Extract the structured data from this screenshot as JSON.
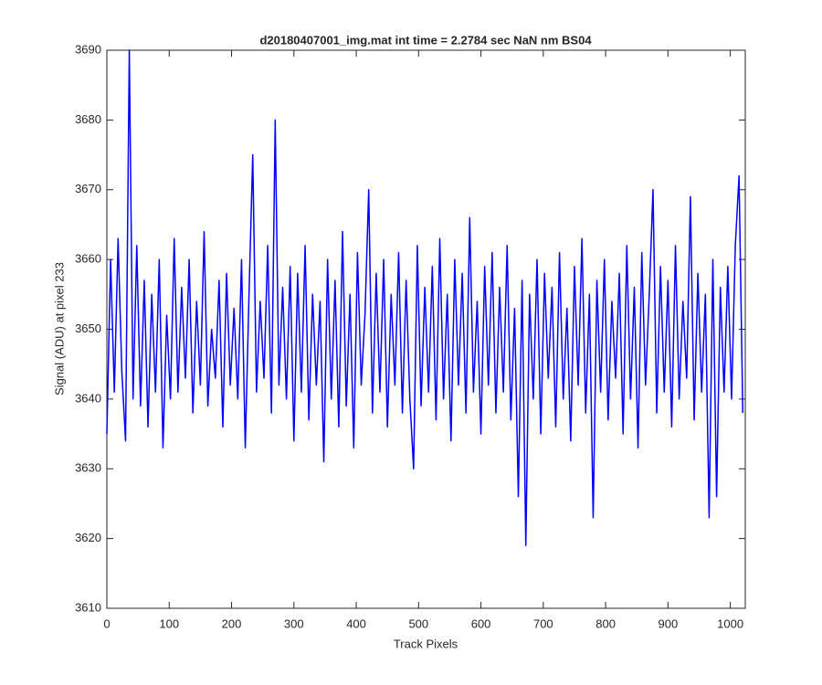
{
  "chart_data": {
    "type": "line",
    "title": "d20180407001_img.mat int time = 2.2784 sec  NaN nm BS04",
    "x_label": "Track Pixels",
    "y_label": "Signal (ADU) at pixel 233",
    "x": [
      0,
      6,
      12,
      18,
      24,
      30,
      36,
      42,
      48,
      54,
      60,
      66,
      72,
      78,
      84,
      90,
      96,
      102,
      108,
      114,
      120,
      126,
      132,
      138,
      144,
      150,
      156,
      162,
      168,
      174,
      180,
      186,
      192,
      198,
      204,
      210,
      216,
      222,
      228,
      234,
      240,
      246,
      252,
      258,
      264,
      270,
      276,
      282,
      288,
      294,
      300,
      306,
      312,
      318,
      324,
      330,
      336,
      342,
      348,
      354,
      360,
      366,
      372,
      378,
      384,
      390,
      396,
      402,
      408,
      414,
      420,
      426,
      432,
      438,
      444,
      450,
      456,
      462,
      468,
      474,
      480,
      486,
      492,
      498,
      504,
      510,
      516,
      522,
      528,
      534,
      540,
      546,
      552,
      558,
      564,
      570,
      576,
      582,
      588,
      594,
      600,
      606,
      612,
      618,
      624,
      630,
      636,
      642,
      648,
      654,
      660,
      666,
      672,
      678,
      684,
      690,
      696,
      702,
      708,
      714,
      720,
      726,
      732,
      738,
      744,
      750,
      756,
      762,
      768,
      774,
      780,
      786,
      792,
      798,
      804,
      810,
      816,
      822,
      828,
      834,
      840,
      846,
      852,
      858,
      864,
      870,
      876,
      882,
      888,
      894,
      900,
      906,
      912,
      918,
      924,
      930,
      936,
      942,
      948,
      954,
      960,
      966,
      972,
      978,
      984,
      990,
      996,
      1002,
      1008,
      1014,
      1020
    ],
    "series": [
      {
        "name": "signal",
        "color": "#0000ff",
        "values": [
          3635,
          3660,
          3641,
          3663,
          3644,
          3634,
          3690,
          3640,
          3662,
          3639,
          3657,
          3636,
          3655,
          3641,
          3660,
          3633,
          3652,
          3640,
          3663,
          3641,
          3656,
          3643,
          3660,
          3638,
          3654,
          3642,
          3664,
          3639,
          3650,
          3643,
          3657,
          3636,
          3658,
          3642,
          3653,
          3640,
          3660,
          3633,
          3655,
          3675,
          3641,
          3654,
          3643,
          3662,
          3638,
          3680,
          3642,
          3656,
          3640,
          3659,
          3634,
          3658,
          3641,
          3662,
          3637,
          3655,
          3642,
          3654,
          3631,
          3660,
          3640,
          3657,
          3636,
          3664,
          3639,
          3655,
          3633,
          3661,
          3642,
          3652,
          3670,
          3638,
          3658,
          3641,
          3660,
          3636,
          3655,
          3642,
          3661,
          3638,
          3657,
          3640,
          3630,
          3662,
          3639,
          3656,
          3641,
          3659,
          3637,
          3663,
          3640,
          3655,
          3634,
          3660,
          3642,
          3658,
          3638,
          3666,
          3641,
          3654,
          3635,
          3659,
          3642,
          3661,
          3638,
          3656,
          3641,
          3662,
          3637,
          3653,
          3626,
          3657,
          3619,
          3655,
          3640,
          3660,
          3635,
          3658,
          3643,
          3656,
          3636,
          3661,
          3640,
          3653,
          3634,
          3659,
          3642,
          3663,
          3638,
          3655,
          3623,
          3657,
          3641,
          3660,
          3637,
          3654,
          3643,
          3658,
          3635,
          3662,
          3640,
          3656,
          3633,
          3661,
          3642,
          3655,
          3670,
          3638,
          3659,
          3641,
          3657,
          3636,
          3662,
          3640,
          3654,
          3643,
          3669,
          3637,
          3658,
          3641,
          3655,
          3623,
          3660,
          3626,
          3656,
          3641,
          3659,
          3640,
          3662,
          3672,
          3638
        ]
      }
    ],
    "xlim": [
      0,
      1024
    ],
    "ylim": [
      3610,
      3690
    ],
    "xticks": [
      0,
      100,
      200,
      300,
      400,
      500,
      600,
      700,
      800,
      900,
      1000
    ],
    "yticks": [
      3610,
      3620,
      3630,
      3640,
      3650,
      3660,
      3670,
      3680,
      3690
    ],
    "grid": false
  }
}
